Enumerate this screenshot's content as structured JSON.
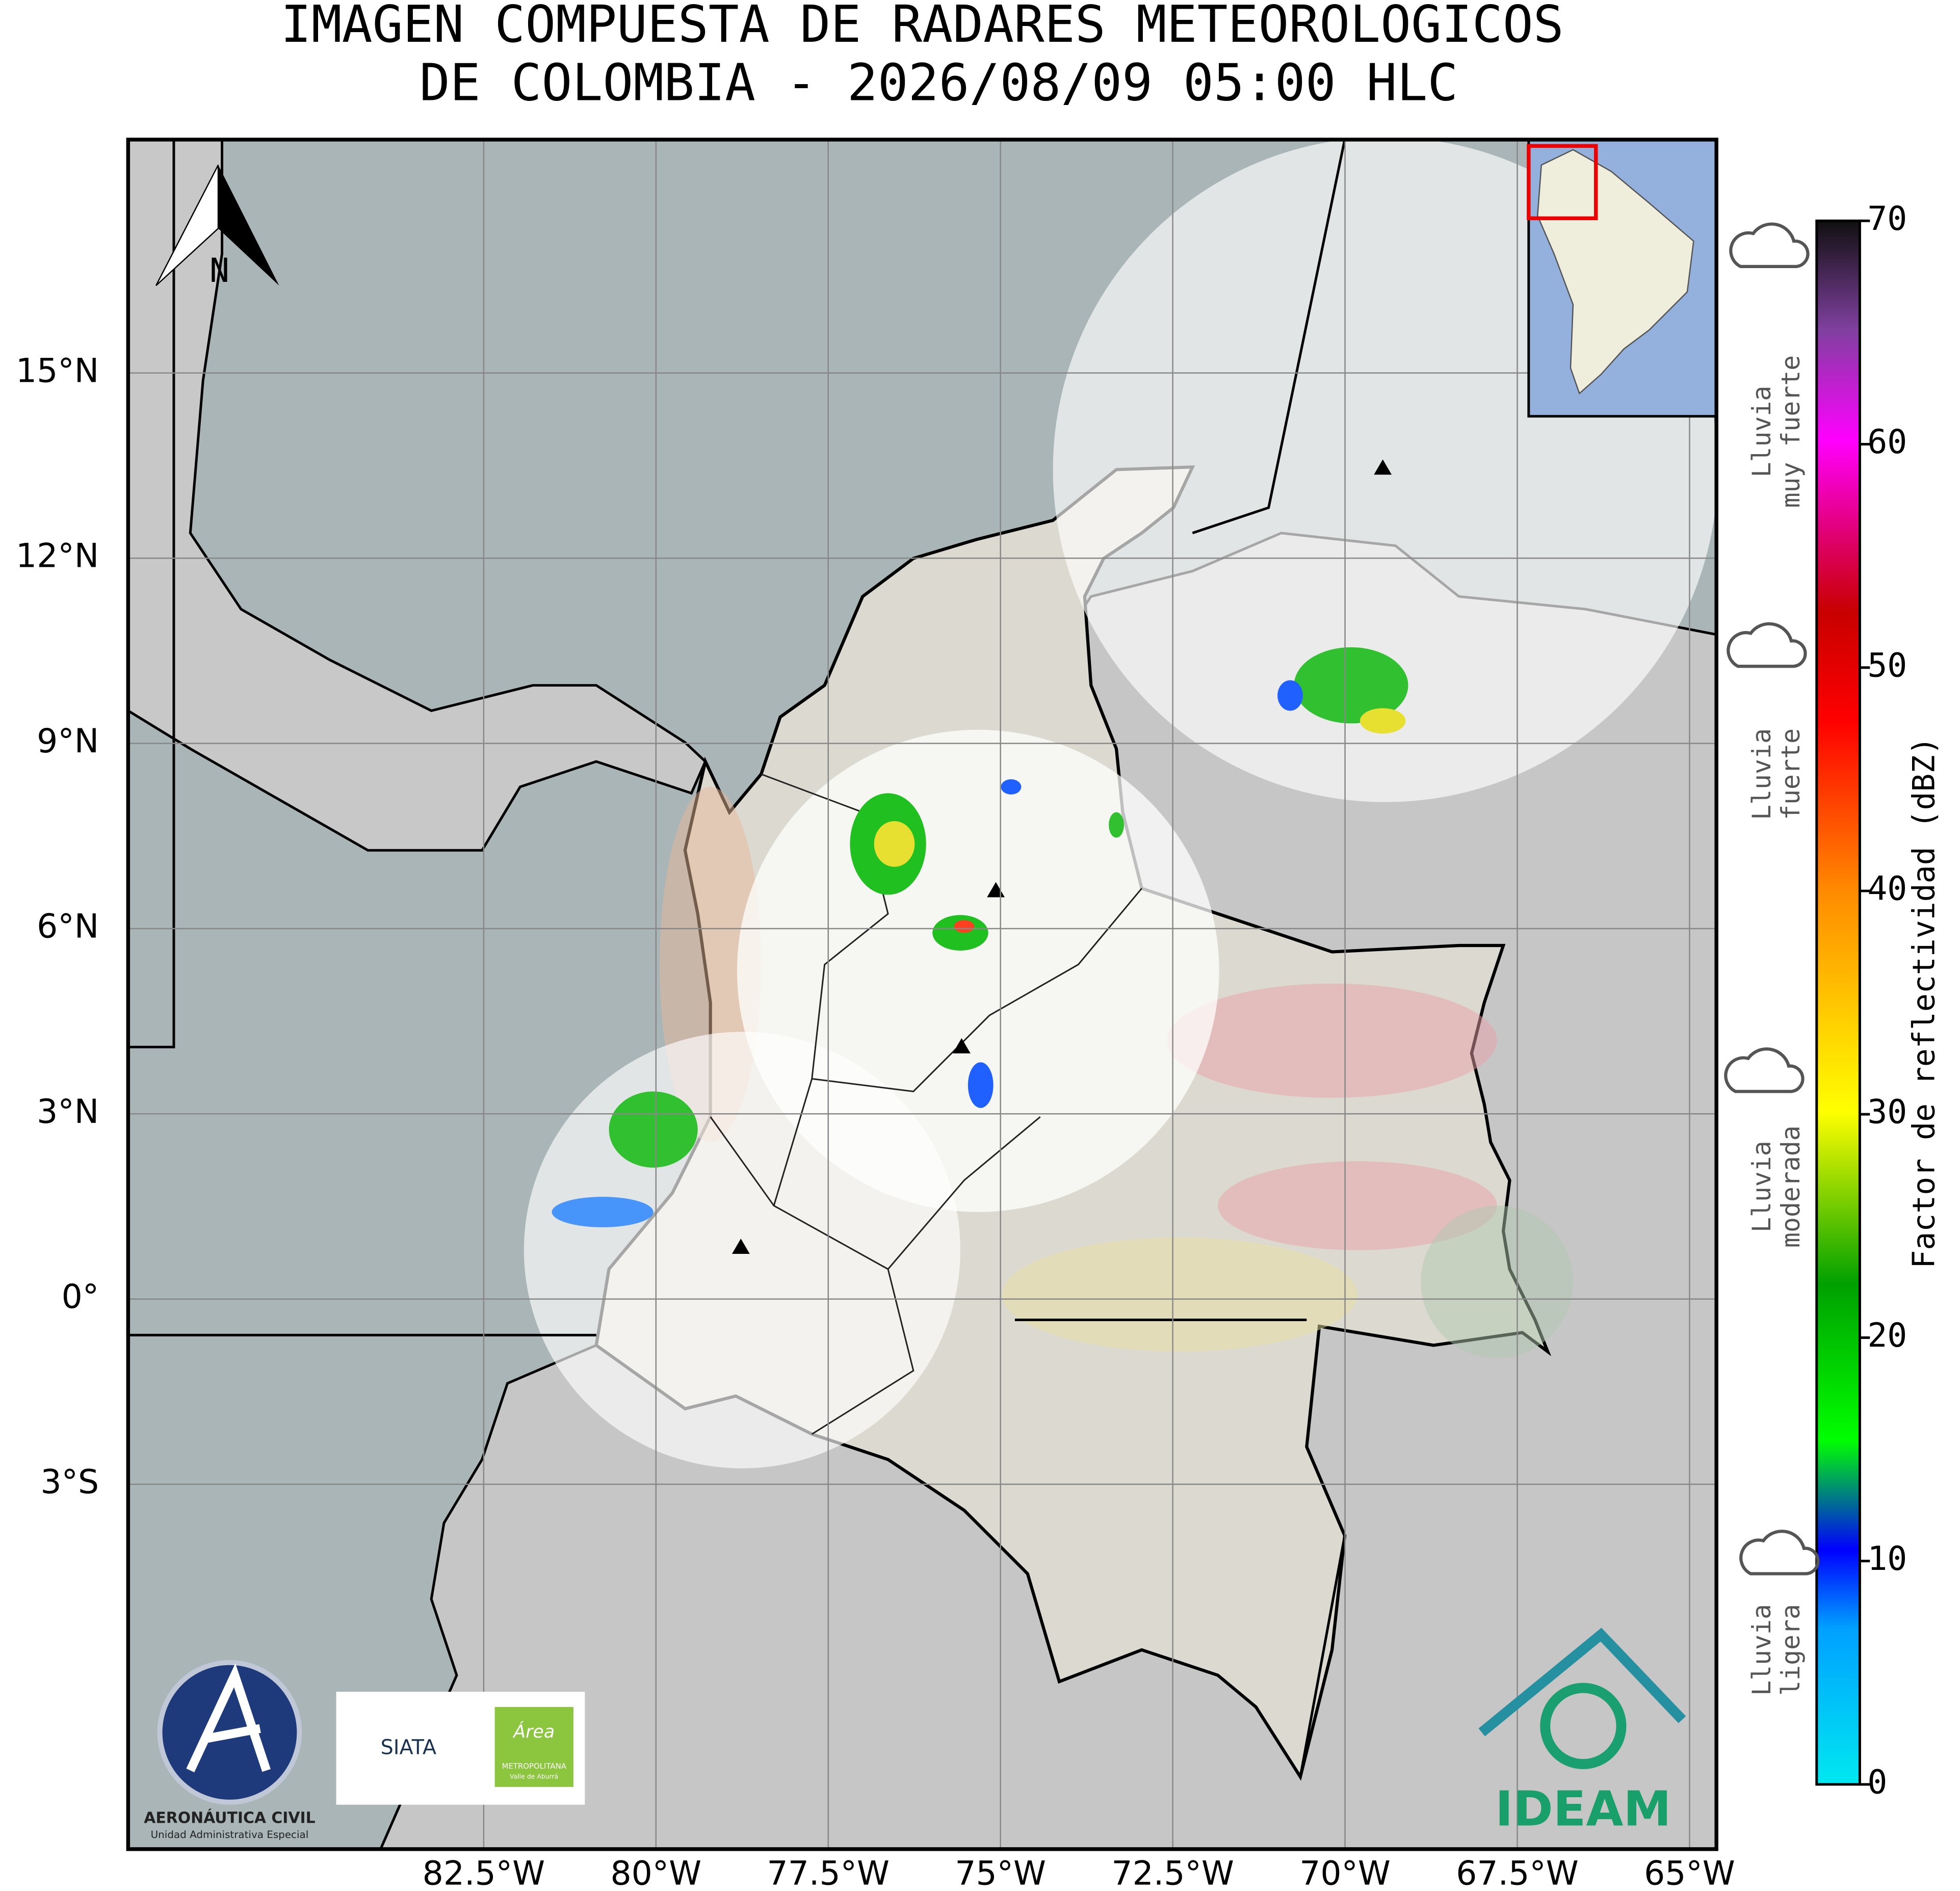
{
  "title": [
    "IMAGEN COMPUESTA DE RADARES METEOROLOGICOS",
    "DE COLOMBIA - 2026/08/09 05:00 HLC"
  ],
  "map": {
    "xlim": [
      -87.66,
      -64.61
    ],
    "ylim": [
      -8.91,
      18.78
    ],
    "xticks": [
      {
        "value": -82.5,
        "label": "82.5°W"
      },
      {
        "value": -80,
        "label": "80°W"
      },
      {
        "value": -77.5,
        "label": "77.5°W"
      },
      {
        "value": -75,
        "label": "75°W"
      },
      {
        "value": -72.5,
        "label": "72.5°W"
      },
      {
        "value": -70,
        "label": "70°W"
      },
      {
        "value": -67.5,
        "label": "67.5°W"
      },
      {
        "value": -65,
        "label": "65°W"
      }
    ],
    "yticks": [
      {
        "value": 15,
        "label": "15°N"
      },
      {
        "value": 12,
        "label": "12°N"
      },
      {
        "value": 9,
        "label": "9°N"
      },
      {
        "value": 6,
        "label": "6°N"
      },
      {
        "value": 3,
        "label": "3°N"
      },
      {
        "value": 0,
        "label": "0°"
      },
      {
        "value": -3,
        "label": "3°S"
      }
    ],
    "grid": true,
    "north_label": "N"
  },
  "colorbar": {
    "label": "Factor de reflectividad (dBZ)",
    "lim": [
      0,
      70
    ],
    "ticks": [
      0,
      10,
      20,
      30,
      40,
      50,
      60,
      70
    ]
  },
  "legend": [
    {
      "lines": [
        "Lluvia",
        "muy fuerte"
      ]
    },
    {
      "lines": [
        "Lluvia",
        "fuerte"
      ]
    },
    {
      "lines": [
        "Lluvia",
        "moderada"
      ]
    },
    {
      "lines": [
        "Lluvia",
        "ligera"
      ]
    }
  ],
  "logos": {
    "aerocivil": [
      "AERONÁUTICA CIVIL",
      "Unidad Administrativa Especial"
    ],
    "siata": "SIATA",
    "area": [
      "Área",
      "METROPOLITANA",
      "Valle de Aburrá"
    ],
    "ideam": "IDEAM"
  }
}
